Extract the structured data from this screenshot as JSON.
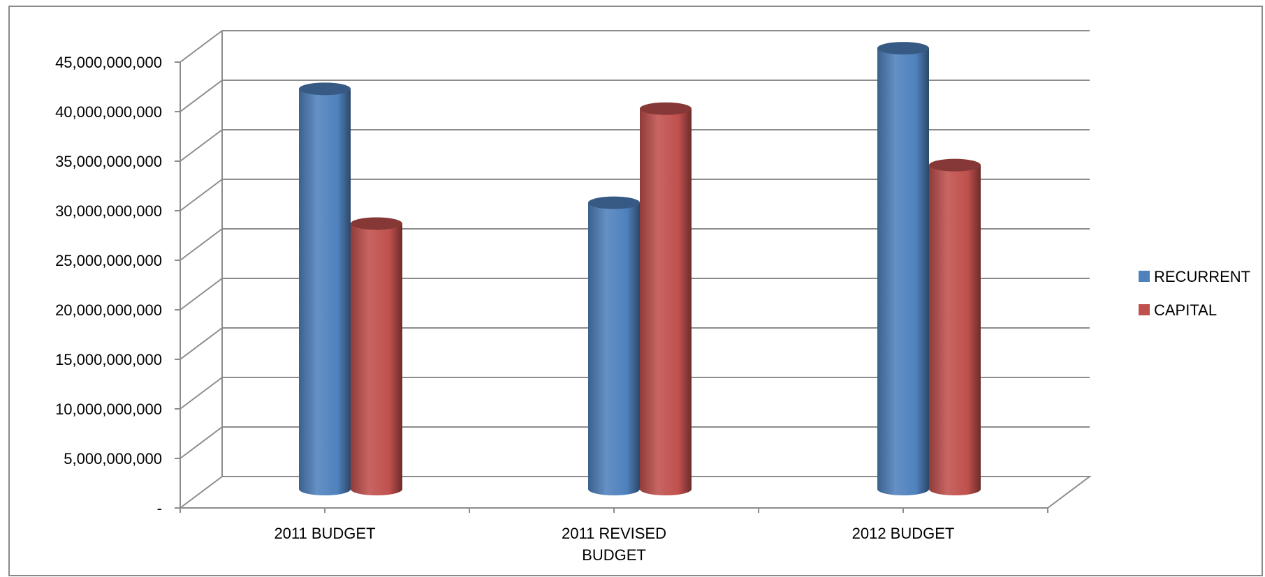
{
  "chart_data": {
    "type": "bar",
    "style": "3d-cylinder",
    "categories": [
      "2011 BUDGET",
      "2011 REVISED BUDGET",
      "2012 BUDGET"
    ],
    "category_label_lines": [
      [
        "2011 BUDGET"
      ],
      [
        "2011 REVISED",
        "BUDGET"
      ],
      [
        "2012 BUDGET"
      ]
    ],
    "series": [
      {
        "name": "RECURRENT",
        "color": "#4f81bd",
        "values": [
          40400000000,
          28900000000,
          44500000000
        ]
      },
      {
        "name": "CAPITAL",
        "color": "#c0504d",
        "values": [
          26800000000,
          38400000000,
          32700000000
        ]
      }
    ],
    "y_ticks": [
      0,
      5000000000,
      10000000000,
      15000000000,
      20000000000,
      25000000000,
      30000000000,
      35000000000,
      40000000000,
      45000000000
    ],
    "y_tick_labels": [
      "-",
      "5,000,000,000",
      "10,000,000,000",
      "15,000,000,000",
      "20,000,000,000",
      "25,000,000,000",
      "30,000,000,000",
      "35,000,000,000",
      "40,000,000,000",
      "45,000,000,000"
    ],
    "ylim": [
      0,
      45000000000
    ],
    "title": "",
    "xlabel": "",
    "ylabel": "",
    "grid": true,
    "legend_position": "right"
  }
}
